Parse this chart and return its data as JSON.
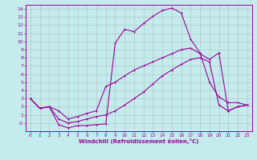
{
  "xlabel": "Windchill (Refroidissement éolien,°C)",
  "bg_color": "#c5eced",
  "grid_color": "#b0c8c8",
  "line_color": "#990099",
  "xlim": [
    -0.5,
    23.5
  ],
  "ylim": [
    -1.0,
    14.5
  ],
  "xticks": [
    0,
    1,
    2,
    3,
    4,
    5,
    6,
    7,
    8,
    9,
    10,
    11,
    12,
    13,
    14,
    15,
    16,
    17,
    18,
    19,
    20,
    21,
    22,
    23
  ],
  "yticks": [
    0,
    1,
    2,
    3,
    4,
    5,
    6,
    7,
    8,
    9,
    10,
    11,
    12,
    13,
    14
  ],
  "ytick_labels": [
    "-0",
    "1",
    "2",
    "3",
    "4",
    "5",
    "6",
    "7",
    "8",
    "9",
    "10",
    "11",
    "12",
    "13",
    "14"
  ],
  "line1_x": [
    0,
    1,
    2,
    3,
    4,
    5,
    6,
    7,
    8,
    9,
    10,
    11,
    12,
    13,
    14,
    15,
    16,
    17,
    18,
    19,
    20,
    21,
    22,
    23
  ],
  "line1_y": [
    3,
    1.8,
    2.0,
    -0.2,
    -0.6,
    -0.3,
    -0.3,
    -0.2,
    -0.1,
    9.8,
    11.5,
    11.2,
    12.2,
    13.1,
    13.8,
    14.1,
    13.5,
    10.3,
    8.6,
    5.0,
    3.2,
    2.5,
    2.5,
    2.2
  ],
  "line2_x": [
    0,
    1,
    2,
    3,
    4,
    5,
    6,
    7,
    8,
    9,
    10,
    11,
    12,
    13,
    14,
    15,
    16,
    17,
    18,
    19,
    20,
    21,
    22,
    23
  ],
  "line2_y": [
    3,
    1.8,
    2.0,
    1.5,
    0.5,
    0.8,
    1.2,
    1.5,
    4.5,
    5.0,
    5.8,
    6.5,
    7.0,
    7.5,
    8.0,
    8.5,
    9.0,
    9.2,
    8.5,
    7.8,
    8.6,
    1.5,
    2.0,
    2.2
  ],
  "line3_x": [
    0,
    1,
    2,
    3,
    4,
    5,
    6,
    7,
    8,
    9,
    10,
    11,
    12,
    13,
    14,
    15,
    16,
    17,
    18,
    19,
    20,
    21,
    22,
    23
  ],
  "line3_y": [
    3,
    1.8,
    2.0,
    0.5,
    0.0,
    0.2,
    0.5,
    0.8,
    1.0,
    1.5,
    2.2,
    3.0,
    3.8,
    4.8,
    5.8,
    6.5,
    7.2,
    7.8,
    8.0,
    7.5,
    2.2,
    1.5,
    2.0,
    2.2
  ]
}
